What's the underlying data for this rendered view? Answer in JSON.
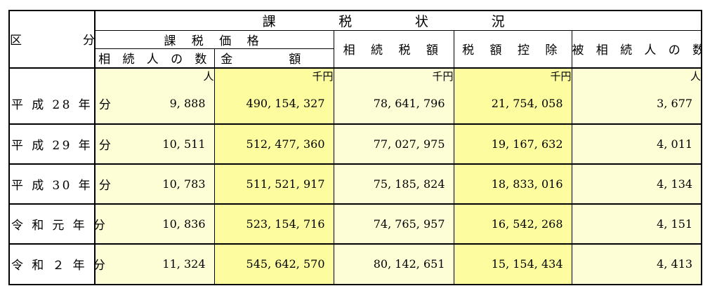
{
  "header": {
    "kubun": "区 分",
    "kazei_jokyo": "課 税 状 況",
    "kazei_kakaku": "課 税 価 格",
    "sozokunin_no_kazu": "相 続 人 の 数",
    "kingaku": "金 額",
    "sozoku_zeigaku": "相 続 税 額",
    "zeigaku_kojo": "税 額 控 除",
    "hi_sozokunin_no_kazu": "被 相 続 人 の 数"
  },
  "units": {
    "heirs": "人",
    "amount": "千円",
    "tax": "千円",
    "deduction": "千円",
    "decedents": "人"
  },
  "rows": [
    {
      "label": "平 成 28 年 分",
      "heirs": "9, 888",
      "amount": "490, 154, 327",
      "tax": "78, 641, 796",
      "deduction": "21, 754, 058",
      "decedents": "3, 677"
    },
    {
      "label": "平 成 29 年 分",
      "heirs": "10, 511",
      "amount": "512, 477, 360",
      "tax": "77, 027, 975",
      "deduction": "19, 167, 632",
      "decedents": "4, 011"
    },
    {
      "label": "平 成 30 年 分",
      "heirs": "10, 783",
      "amount": "511, 521, 917",
      "tax": "75, 185, 824",
      "deduction": "18, 833, 016",
      "decedents": "4, 134"
    },
    {
      "label": "令 和 元 年 分",
      "heirs": "10, 836",
      "amount": "523, 154, 716",
      "tax": "74, 765, 957",
      "deduction": "16, 542, 268",
      "decedents": "4, 151"
    },
    {
      "label": "令 和 ２ 年 分",
      "heirs": "11, 324",
      "amount": "545, 642, 570",
      "tax": "80, 142, 651",
      "deduction": "15, 154, 434",
      "decedents": "4, 413"
    }
  ]
}
